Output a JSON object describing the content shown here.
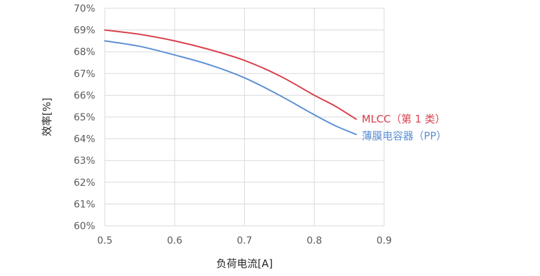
{
  "chart_data": {
    "type": "line",
    "xlabel": "负荷电流[A]",
    "ylabel": "效率[%]",
    "xlim": [
      0.5,
      0.9
    ],
    "ylim": [
      60,
      70
    ],
    "x_ticks": [
      0.5,
      0.6,
      0.7,
      0.8,
      0.9
    ],
    "x_tick_labels": [
      "0.5",
      "0.6",
      "0.7",
      "0.8",
      "0.9"
    ],
    "y_ticks": [
      60,
      61,
      62,
      63,
      64,
      65,
      66,
      67,
      68,
      69,
      70
    ],
    "y_tick_labels": [
      "60%",
      "61%",
      "62%",
      "63%",
      "64%",
      "65%",
      "66%",
      "67%",
      "68%",
      "69%",
      "70%"
    ],
    "grid": true,
    "legend_placement": "inline-right",
    "series": [
      {
        "name": "MLCC（第 1 类）",
        "color": "#d9404b",
        "x": [
          0.5,
          0.55,
          0.6,
          0.65,
          0.7,
          0.75,
          0.8,
          0.83,
          0.86
        ],
        "y": [
          69.0,
          68.8,
          68.5,
          68.1,
          67.6,
          66.9,
          66.0,
          65.5,
          64.9
        ]
      },
      {
        "name": "薄膜电容器（PP）",
        "color": "#5b8fd4",
        "x": [
          0.5,
          0.55,
          0.6,
          0.65,
          0.7,
          0.75,
          0.8,
          0.83,
          0.86
        ],
        "y": [
          68.5,
          68.25,
          67.85,
          67.4,
          66.8,
          66.0,
          65.1,
          64.6,
          64.2
        ]
      }
    ]
  }
}
